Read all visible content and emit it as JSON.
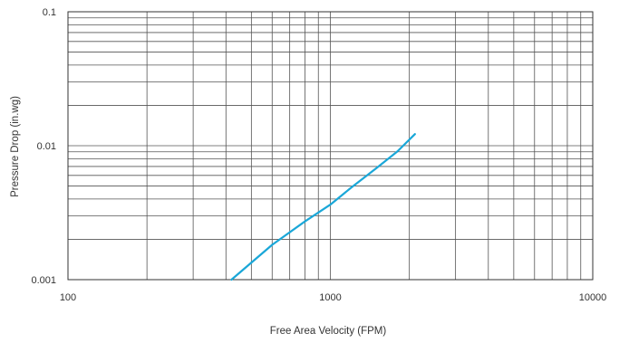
{
  "chart_data": {
    "type": "line",
    "xlabel": "Free Area Velocity (FPM)",
    "ylabel": "Pressure Drop (in.wg)",
    "x_scale": "log",
    "y_scale": "log",
    "xlim": [
      100,
      10000
    ],
    "ylim": [
      0.001,
      0.1
    ],
    "x_ticks": [
      {
        "value": 100,
        "label": "100"
      },
      {
        "value": 1000,
        "label": "1000"
      },
      {
        "value": 10000,
        "label": "10000"
      }
    ],
    "y_ticks": [
      {
        "value": 0.1,
        "label": "0.1"
      },
      {
        "value": 0.01,
        "label": "0.01"
      },
      {
        "value": 0.001,
        "label": "0.001"
      }
    ],
    "grid": true,
    "series": [
      {
        "color": "#1aa7d8",
        "x": [
          420,
          600,
          800,
          1000,
          1200,
          1500,
          1800,
          2100
        ],
        "y": [
          0.001,
          0.00182,
          0.00272,
          0.00363,
          0.00486,
          0.00682,
          0.00905,
          0.0122
        ]
      }
    ]
  }
}
